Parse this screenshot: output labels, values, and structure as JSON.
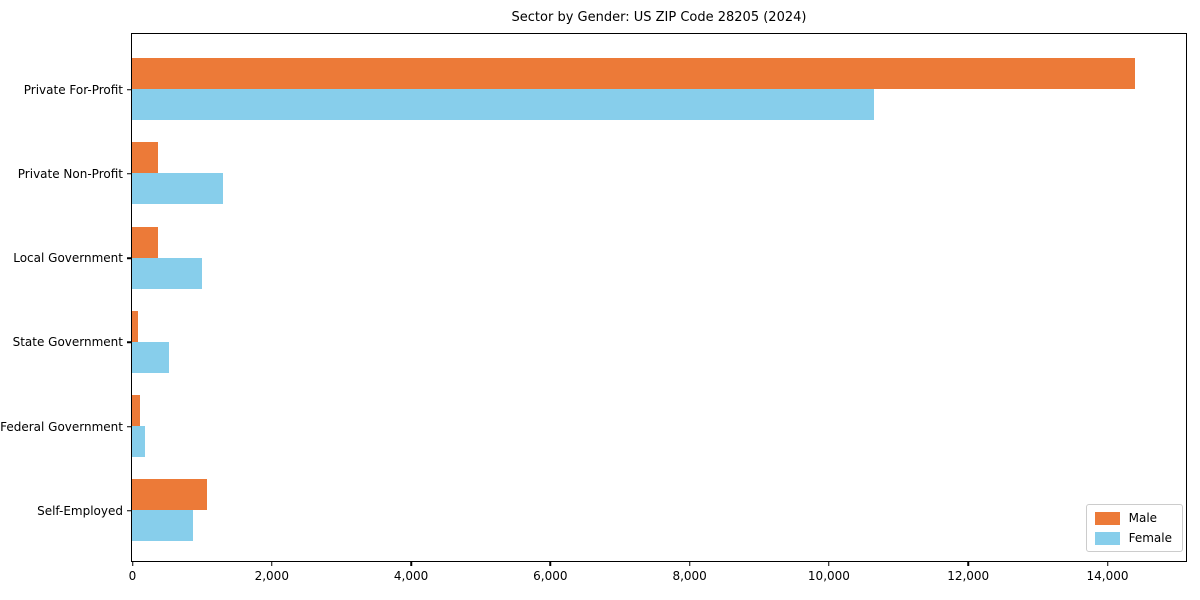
{
  "title": "Sector by Gender: US ZIP Code 28205 (2024)",
  "chart_data": {
    "type": "bar",
    "orientation": "horizontal",
    "title": "Sector by Gender: US ZIP Code 28205 (2024)",
    "categories": [
      "Private For-Profit",
      "Private Non-Profit",
      "Local Government",
      "State Government",
      "Federal Government",
      "Self-Employed"
    ],
    "series": [
      {
        "name": "Male",
        "color": "#ec7a38",
        "values": [
          14400,
          380,
          370,
          90,
          110,
          1070
        ]
      },
      {
        "name": "Female",
        "color": "#87ceeb",
        "values": [
          10650,
          1300,
          1000,
          530,
          180,
          880
        ]
      }
    ],
    "xlabel": "",
    "ylabel": "",
    "xlim": [
      0,
      15120
    ],
    "xticks": [
      0,
      2000,
      4000,
      6000,
      8000,
      10000,
      12000,
      14000
    ],
    "xtick_labels": [
      "0",
      "2,000",
      "4,000",
      "6,000",
      "8,000",
      "10,000",
      "12,000",
      "14,000"
    ],
    "grid": false,
    "legend_position": "lower right",
    "legend": {
      "items": [
        {
          "label": "Male",
          "color": "#ec7a38"
        },
        {
          "label": "Female",
          "color": "#87ceeb"
        }
      ]
    }
  }
}
